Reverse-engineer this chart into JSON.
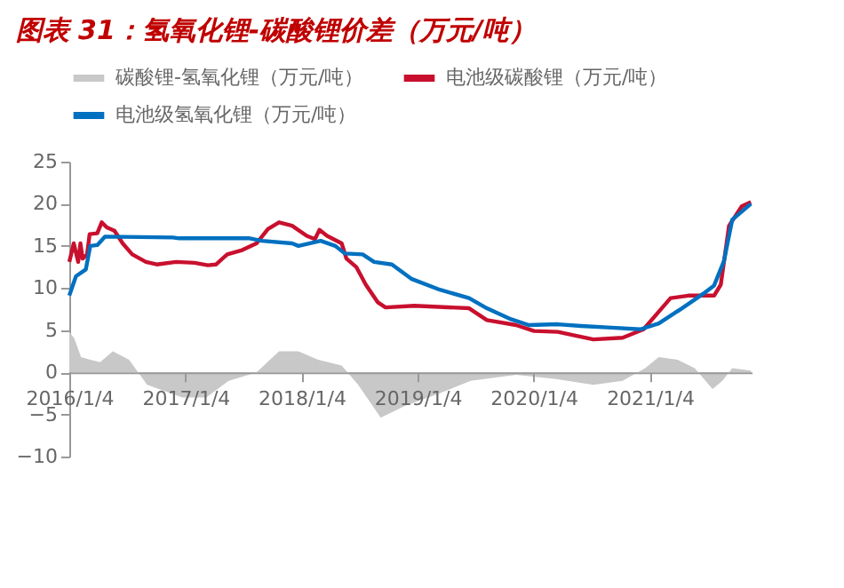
{
  "chart_data": {
    "type": "line",
    "title": "图表 31：氢氧化锂-碳酸锂价差（万元/吨）",
    "xlim": [
      "2016-01-04",
      "2021-11-20"
    ],
    "xticks": [
      {
        "value": "2016-01-04",
        "label": "2016/1/4"
      },
      {
        "value": "2017-01-04",
        "label": "2017/1/4"
      },
      {
        "value": "2018-01-04",
        "label": "2018/1/4"
      },
      {
        "value": "2019-01-04",
        "label": "2019/1/4"
      },
      {
        "value": "2020-01-04",
        "label": "2020/1/4"
      },
      {
        "value": "2021-01-04",
        "label": "2021/1/4"
      }
    ],
    "ylim": [
      -10,
      25
    ],
    "yticks": [
      -10,
      -5,
      0,
      5,
      10,
      15,
      20,
      25
    ],
    "grid": false,
    "legend": "top",
    "series": [
      {
        "name": "碳酸锂-氢氧化锂（万元/吨）",
        "type": "area",
        "color": "#c8c8c8",
        "x": [
          "2016-01-04",
          "2016-01-20",
          "2016-02-10",
          "2016-03-10",
          "2016-04-10",
          "2016-05-20",
          "2016-07-10",
          "2016-09-05",
          "2016-12-25",
          "2017-03-10",
          "2017-05-20",
          "2017-08-15",
          "2017-10-25",
          "2017-12-25",
          "2018-02-25",
          "2018-05-10",
          "2018-07-01",
          "2018-09-10",
          "2018-11-25",
          "2019-03-15",
          "2019-06-20",
          "2019-11-10",
          "2020-03-15",
          "2020-07-10",
          "2020-10-10",
          "2020-12-20",
          "2021-02-01",
          "2021-04-01",
          "2021-05-25",
          "2021-07-20",
          "2021-08-20",
          "2021-09-20",
          "2021-11-18"
        ],
        "values": [
          4.8,
          4.0,
          1.8,
          1.5,
          1.2,
          2.5,
          1.5,
          -1.5,
          -3.0,
          -3.0,
          -1.0,
          0.0,
          2.5,
          2.5,
          1.5,
          0.8,
          -1.5,
          -5.4,
          -4.0,
          -2.5,
          -1.0,
          -0.3,
          -0.8,
          -1.5,
          -1.0,
          0.5,
          1.8,
          1.5,
          0.5,
          -2.0,
          -1.0,
          0.5,
          0.2
        ]
      },
      {
        "name": "电池级碳酸锂（万元/吨）",
        "color": "#c8102e",
        "x": [
          "2016-01-04",
          "2016-01-18",
          "2016-02-01",
          "2016-02-08",
          "2016-02-15",
          "2016-02-29",
          "2016-03-08",
          "2016-04-01",
          "2016-04-15",
          "2016-05-01",
          "2016-05-25",
          "2016-06-20",
          "2016-07-20",
          "2016-09-01",
          "2016-10-05",
          "2016-12-05",
          "2017-02-01",
          "2017-03-15",
          "2017-04-10",
          "2017-05-15",
          "2017-07-01",
          "2017-08-15",
          "2017-09-20",
          "2017-10-25",
          "2017-12-05",
          "2018-01-20",
          "2018-02-15",
          "2018-03-01",
          "2018-03-25",
          "2018-05-10",
          "2018-05-25",
          "2018-06-25",
          "2018-07-25",
          "2018-09-01",
          "2018-09-25",
          "2018-12-25",
          "2019-06-15",
          "2019-08-10",
          "2019-11-10",
          "2020-01-05",
          "2020-03-20",
          "2020-07-10",
          "2020-10-10",
          "2020-12-15",
          "2021-02-01",
          "2021-03-10",
          "2021-05-05",
          "2021-07-25",
          "2021-08-15",
          "2021-09-10",
          "2021-10-20",
          "2021-11-18"
        ],
        "values": [
          13.1,
          15.3,
          13.1,
          15.3,
          13.5,
          14.0,
          16.4,
          16.5,
          17.8,
          17.2,
          16.8,
          15.3,
          14.0,
          13.1,
          12.8,
          13.1,
          13.0,
          12.7,
          12.8,
          14.0,
          14.5,
          15.3,
          17.0,
          17.8,
          17.4,
          16.2,
          15.8,
          16.9,
          16.2,
          15.3,
          13.5,
          12.5,
          10.4,
          8.3,
          7.7,
          7.9,
          7.6,
          6.2,
          5.6,
          4.9,
          4.8,
          3.9,
          4.1,
          5.1,
          7.2,
          8.8,
          9.1,
          9.1,
          10.4,
          17.4,
          19.7,
          20.2
        ]
      },
      {
        "name": "电池级氢氧化锂（万元/吨）",
        "color": "#0070c0",
        "x": [
          "2016-01-04",
          "2016-01-25",
          "2016-02-25",
          "2016-03-10",
          "2016-04-01",
          "2016-04-25",
          "2016-11-25",
          "2016-12-15",
          "2017-07-25",
          "2017-09-01",
          "2017-12-05",
          "2017-12-25",
          "2018-03-05",
          "2018-04-20",
          "2018-05-20",
          "2018-07-15",
          "2018-08-20",
          "2018-10-15",
          "2018-12-15",
          "2019-03-15",
          "2019-06-15",
          "2019-08-10",
          "2019-10-25",
          "2019-12-20",
          "2020-03-20",
          "2020-06-01",
          "2020-09-05",
          "2020-12-05",
          "2021-02-01",
          "2021-04-15",
          "2021-06-20",
          "2021-07-25",
          "2021-08-25",
          "2021-09-20",
          "2021-11-18"
        ],
        "values": [
          9.1,
          11.4,
          12.2,
          15.0,
          15.1,
          16.1,
          16.0,
          15.9,
          15.9,
          15.6,
          15.3,
          15.0,
          15.6,
          15.0,
          14.1,
          14.0,
          13.1,
          12.8,
          11.1,
          9.8,
          8.8,
          7.6,
          6.3,
          5.6,
          5.7,
          5.5,
          5.3,
          5.1,
          5.8,
          7.6,
          9.3,
          10.3,
          13.2,
          18.1,
          20.0
        ]
      }
    ]
  }
}
